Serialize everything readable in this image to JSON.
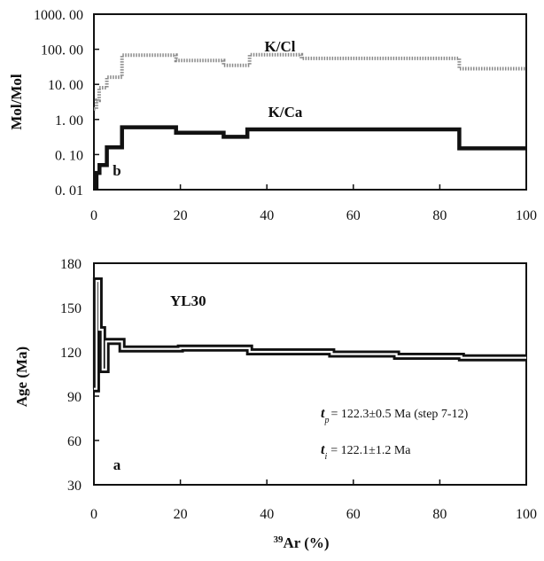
{
  "chart_data": [
    {
      "type": "line",
      "panel_label": "b",
      "ylabel": "Mol/Mol",
      "yscale": "log",
      "xlim": [
        0,
        100
      ],
      "ylim": [
        0.01,
        1000
      ],
      "x_ticks": [
        "0",
        "20",
        "40",
        "60",
        "80",
        "100"
      ],
      "y_ticks": [
        "0. 01",
        "0. 10",
        "1. 00",
        "10. 00",
        "100. 00",
        "1000. 00"
      ],
      "series": [
        {
          "name": "K/Cl",
          "color": "#8a8a8a",
          "style": "dotted",
          "steps": [
            [
              0,
              0.6,
              2
            ],
            [
              0.6,
              1.2,
              3.5
            ],
            [
              1.2,
              3,
              8
            ],
            [
              3,
              6.5,
              16
            ],
            [
              6.5,
              19,
              68
            ],
            [
              19,
              30,
              48
            ],
            [
              30,
              36,
              35
            ],
            [
              36,
              48,
              70
            ],
            [
              48,
              84.5,
              55
            ],
            [
              84.5,
              100,
              28
            ]
          ]
        },
        {
          "name": "K/Ca",
          "color": "#111111",
          "style": "solid",
          "steps": [
            [
              0,
              0.6,
              0.012
            ],
            [
              0.6,
              1.3,
              0.03
            ],
            [
              1.3,
              3,
              0.05
            ],
            [
              3,
              6.5,
              0.16
            ],
            [
              6.5,
              19,
              0.6
            ],
            [
              19,
              30,
              0.42
            ],
            [
              30,
              35.5,
              0.32
            ],
            [
              35.5,
              84.5,
              0.52
            ],
            [
              84.5,
              100,
              0.15
            ]
          ]
        }
      ]
    },
    {
      "type": "line",
      "panel_label": "a",
      "sample": "YL30",
      "ylabel": "Age (Ma)",
      "xlabel_sup": "39",
      "xlabel_rest": "Ar (%)",
      "xlim": [
        0,
        100
      ],
      "ylim": [
        30,
        180
      ],
      "x_ticks": [
        "0",
        "20",
        "40",
        "60",
        "80",
        "100"
      ],
      "y_ticks": [
        "30",
        "60",
        "90",
        "120",
        "150",
        "180"
      ],
      "annotations": {
        "tp_sub": "p",
        "tp_text": "= 122.3±0.5 Ma (step 7-12)",
        "ti_sub": "i",
        "ti_text": "= 122.1±1.2 Ma"
      },
      "steps": [
        [
          0,
          0.6,
          95
        ],
        [
          0.6,
          1.2,
          168
        ],
        [
          1.2,
          2,
          135
        ],
        [
          2,
          2.8,
          108
        ],
        [
          2.8,
          6.5,
          127
        ],
        [
          6.5,
          20,
          122
        ],
        [
          20,
          36,
          122.5
        ],
        [
          36,
          55,
          120
        ],
        [
          55,
          70,
          118.5
        ],
        [
          70,
          85,
          117
        ],
        [
          85,
          100,
          116
        ]
      ]
    }
  ]
}
